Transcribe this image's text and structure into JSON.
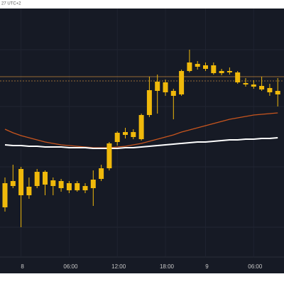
{
  "chart_data": {
    "type": "candlestick",
    "header": "27 UTC+2",
    "categories": [
      null,
      null,
      "8",
      null,
      null,
      null,
      null,
      null,
      "06:00",
      null,
      null,
      null,
      null,
      null,
      "12:00",
      null,
      null,
      null,
      null,
      null,
      "18:00",
      null,
      null,
      null,
      null,
      "9",
      null,
      null,
      null,
      null,
      null,
      "06:00",
      null,
      null,
      null
    ],
    "open": [
      108,
      138,
      125,
      125,
      138,
      140,
      138,
      135,
      132,
      132,
      132,
      135,
      148,
      163,
      200,
      210,
      207,
      204,
      238,
      272,
      270,
      265,
      267,
      300,
      306,
      303,
      297,
      297,
      298,
      284,
      281,
      278,
      274,
      270,
      267
    ],
    "high": [
      150,
      168,
      165,
      150,
      162,
      160,
      150,
      148,
      145,
      145,
      142,
      160,
      168,
      200,
      215,
      220,
      218,
      240,
      292,
      295,
      288,
      275,
      302,
      330,
      314,
      312,
      312,
      303,
      305,
      300,
      290,
      287,
      292,
      282,
      290
    ],
    "low": [
      102,
      135,
      80,
      120,
      135,
      125,
      125,
      130,
      128,
      130,
      128,
      110,
      145,
      160,
      195,
      205,
      204,
      202,
      235,
      240,
      265,
      232,
      265,
      298,
      302,
      300,
      295,
      294,
      295,
      282,
      278,
      275,
      272,
      265,
      250
    ],
    "close": [
      142,
      145,
      162,
      137,
      158,
      158,
      146,
      145,
      142,
      142,
      138,
      147,
      163,
      198,
      213,
      214,
      214,
      238,
      273,
      285,
      284,
      272,
      300,
      312,
      310,
      308,
      308,
      300,
      300,
      298,
      283,
      281,
      279,
      276,
      272
    ],
    "color": "#f0b90b",
    "lines": [
      {
        "color": "#c8551e",
        "values": [
          218,
          213,
          209,
          206,
          203,
          200,
          198,
          196,
          195,
          194,
          193,
          192,
          192,
          192,
          193,
          194,
          196,
          198,
          201,
          204,
          207,
          210,
          214,
          217,
          220,
          223,
          226,
          229,
          232,
          234,
          236,
          238,
          239,
          240,
          241
        ]
      },
      {
        "color": "#ffffff",
        "values": [
          196,
          195,
          195,
          194,
          194,
          193,
          193,
          193,
          192,
          192,
          192,
          191,
          191,
          191,
          191,
          192,
          192,
          193,
          194,
          195,
          196,
          197,
          198,
          199,
          200,
          200,
          201,
          202,
          203,
          203,
          204,
          204,
          205,
          205,
          206
        ]
      }
    ],
    "price_lines": [
      292,
      286
    ],
    "price_line_color": "#b7803a",
    "ygrid": [
      330,
      250,
      165,
      80
    ],
    "ylim": [
      38,
      388
    ]
  }
}
